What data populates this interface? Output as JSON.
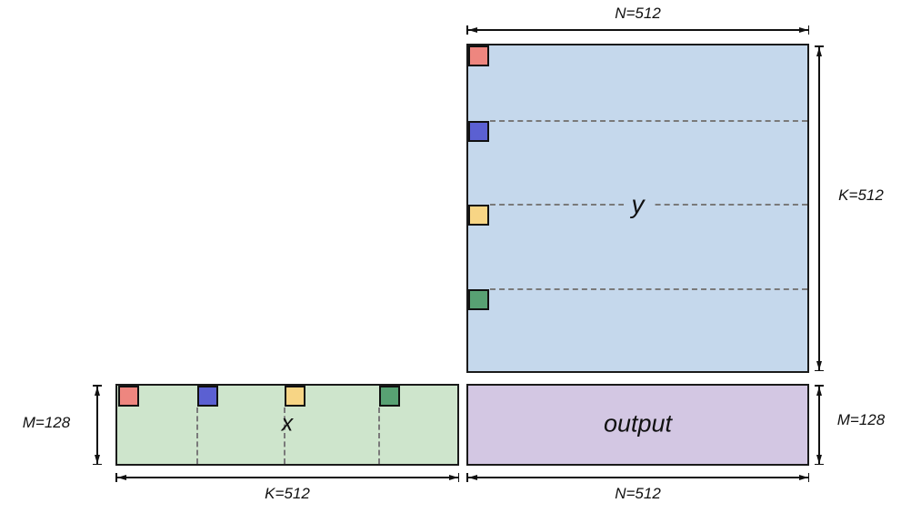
{
  "diagram": {
    "description": "Split-K matrix multiplication diagram: x (M x K) times y (K x N) equals output (M x N), with K split into 4 color-coded chunks",
    "matrix_y": {
      "label": "y",
      "top_dim": "N=512",
      "right_dim": "K=512",
      "fill": "#c5d8ec"
    },
    "matrix_x": {
      "label": "x",
      "left_dim": "M=128",
      "bottom_dim": "K=512",
      "fill": "#cee5cc"
    },
    "matrix_output": {
      "label": "output",
      "right_dim": "M=128",
      "bottom_dim": "N=512",
      "fill": "#d3c7e3"
    },
    "chunks": [
      {
        "name": "chunk-0-red",
        "color": "#ee867f"
      },
      {
        "name": "chunk-1-blue",
        "color": "#5b60d2"
      },
      {
        "name": "chunk-2-yellow",
        "color": "#f7d585"
      },
      {
        "name": "chunk-3-green",
        "color": "#58a173"
      }
    ],
    "dash_color": "#7a7a7a",
    "border_color": "#1a1a1a",
    "background": "#ffffff"
  }
}
